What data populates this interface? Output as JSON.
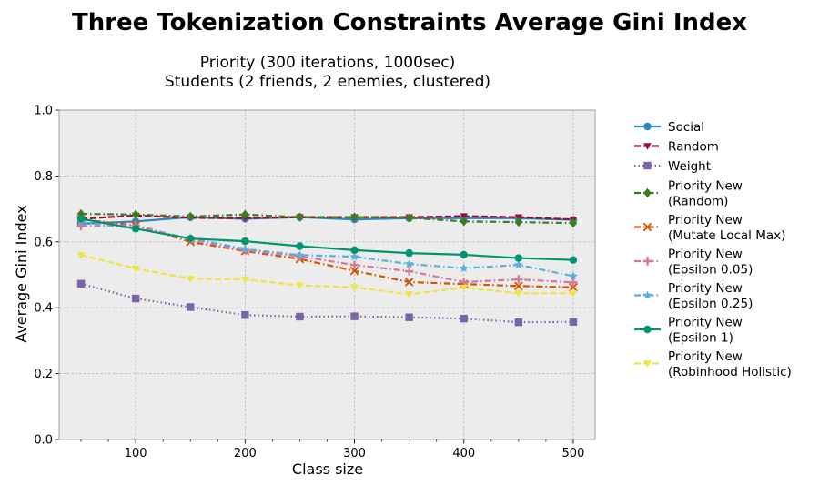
{
  "chart_data": {
    "type": "line",
    "title": "Three Tokenization Constraints Average Gini Index",
    "subtitle_lines": [
      "Priority (300 iterations, 1000sec)",
      "Students (2 friends, 2 enemies, clustered)"
    ],
    "xlabel": "Class size",
    "ylabel": "Average Gini Index",
    "xlim": [
      30,
      520
    ],
    "ylim": [
      0.0,
      1.0
    ],
    "x_ticks": [
      100,
      200,
      300,
      400,
      500
    ],
    "y_ticks": [
      0.0,
      0.2,
      0.4,
      0.6,
      0.8,
      1.0
    ],
    "y_tick_labels": [
      "0.0",
      "0.2",
      "0.4",
      "0.6",
      "0.8",
      "1.0"
    ],
    "grid": true,
    "legend_position": "outside-right",
    "x": [
      50,
      100,
      150,
      200,
      250,
      300,
      350,
      400,
      450,
      500
    ],
    "series": [
      {
        "name": "Social",
        "legend_lines": [
          "Social"
        ],
        "color": "#2e86c1",
        "dash": "solid",
        "marker": "circle",
        "values": [
          0.655,
          0.662,
          0.675,
          0.67,
          0.675,
          0.668,
          0.672,
          0.672,
          0.672,
          0.667
        ]
      },
      {
        "name": "Random",
        "legend_lines": [
          "Random"
        ],
        "color": "#9e0a30",
        "dash": "dashed",
        "marker": "triangle-down",
        "values": [
          0.67,
          0.68,
          0.673,
          0.672,
          0.675,
          0.675,
          0.675,
          0.678,
          0.675,
          0.668
        ]
      },
      {
        "name": "Weight",
        "legend_lines": [
          "Weight"
        ],
        "color": "#7a64a8",
        "dash": "dotted",
        "marker": "square",
        "values": [
          0.473,
          0.428,
          0.402,
          0.378,
          0.373,
          0.374,
          0.371,
          0.367,
          0.356,
          0.357
        ]
      },
      {
        "name": "Priority New (Random)",
        "legend_lines": [
          "Priority New",
          "(Random)"
        ],
        "color": "#3a7d1e",
        "dash": "dashdot",
        "marker": "diamond",
        "values": [
          0.685,
          0.683,
          0.677,
          0.683,
          0.675,
          0.675,
          0.673,
          0.662,
          0.66,
          0.657
        ]
      },
      {
        "name": "Priority New (Mutate Local Max)",
        "legend_lines": [
          "Priority New",
          "(Mutate Local Max)"
        ],
        "color": "#d45500",
        "dash": "dashdot",
        "marker": "x",
        "values": [
          0.668,
          0.65,
          0.6,
          0.572,
          0.548,
          0.512,
          0.478,
          0.472,
          0.466,
          0.462
        ]
      },
      {
        "name": "Priority New (Epsilon 0.05)",
        "legend_lines": [
          "Priority New",
          "(Epsilon 0.05)"
        ],
        "color": "#d6789e",
        "dash": "dashdot",
        "marker": "plus",
        "values": [
          0.648,
          0.65,
          0.608,
          0.575,
          0.556,
          0.53,
          0.511,
          0.478,
          0.486,
          0.477
        ]
      },
      {
        "name": "Priority New (Epsilon 0.25)",
        "legend_lines": [
          "Priority New",
          "(Epsilon 0.25)"
        ],
        "color": "#5aafe0",
        "dash": "dashdot",
        "marker": "star",
        "values": [
          0.66,
          0.64,
          0.612,
          0.578,
          0.56,
          0.555,
          0.533,
          0.52,
          0.53,
          0.496
        ]
      },
      {
        "name": "Priority New (Epsilon 1)",
        "legend_lines": [
          "Priority New",
          "(Epsilon 1)"
        ],
        "color": "#009470",
        "dash": "solid",
        "marker": "circle",
        "values": [
          0.67,
          0.64,
          0.61,
          0.602,
          0.587,
          0.575,
          0.566,
          0.561,
          0.551,
          0.545
        ]
      },
      {
        "name": "Priority New (Robinhood Holistic)",
        "legend_lines": [
          "Priority New",
          "(Robinhood Holistic)"
        ],
        "color": "#f0e442",
        "dash": "dashed",
        "marker": "triangle-down",
        "values": [
          0.56,
          0.519,
          0.488,
          0.486,
          0.468,
          0.462,
          0.441,
          0.461,
          0.444,
          0.444
        ]
      }
    ]
  }
}
